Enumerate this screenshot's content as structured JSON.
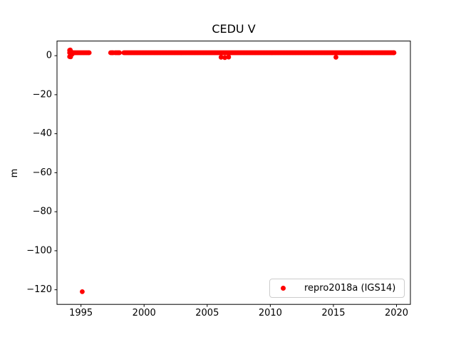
{
  "chart_data": {
    "type": "scatter",
    "title": "CEDU V",
    "xlabel": "",
    "ylabel": "m",
    "xlim": [
      1993.1,
      2021.1
    ],
    "ylim": [
      -127.5,
      7.5
    ],
    "xticks": [
      1995,
      2000,
      2005,
      2010,
      2015,
      2020
    ],
    "yticks": [
      0,
      -20,
      -40,
      -60,
      -80,
      -100,
      -120
    ],
    "grid": false,
    "legend": {
      "position": "lower-right",
      "items": [
        "repro2018a (IGS14)"
      ]
    },
    "series": [
      {
        "name": "repro2018a (IGS14)",
        "color": "#ff0000",
        "marker": "point",
        "band_value_m": 1.5,
        "band_segments": [
          [
            1994.1,
            1995.65
          ],
          [
            1997.35,
            1997.55
          ],
          [
            1997.7,
            1998.05
          ],
          [
            1998.4,
            2019.8
          ]
        ],
        "extra_points": [
          [
            1994.1,
            2.8
          ],
          [
            1994.1,
            -0.5
          ],
          [
            1994.12,
            1.8
          ],
          [
            1994.15,
            2.9
          ],
          [
            1994.18,
            -0.6
          ],
          [
            1994.22,
            2.0
          ],
          [
            1994.3,
            0.8
          ],
          [
            2006.1,
            -0.8
          ],
          [
            2006.4,
            -1.0
          ],
          [
            2006.7,
            -0.7
          ],
          [
            2015.2,
            -0.8
          ]
        ],
        "outliers": [
          [
            1995.1,
            -121
          ]
        ]
      }
    ]
  },
  "colors": {
    "marker": "#ff0000",
    "axis": "#000000",
    "legend_border": "#cccccc",
    "background": "#ffffff"
  }
}
